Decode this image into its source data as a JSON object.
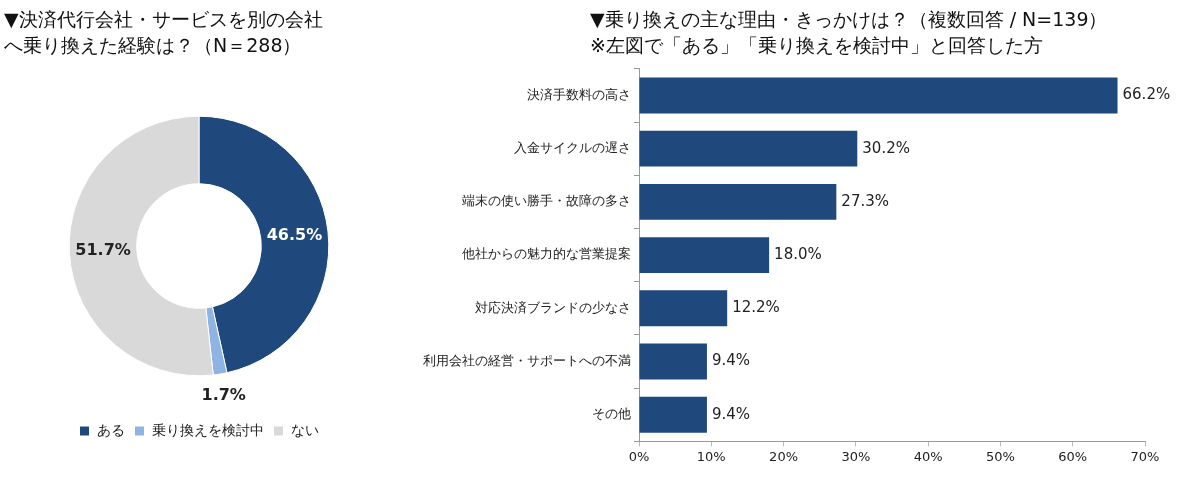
{
  "chart_data": [
    {
      "type": "donut",
      "title": "▼決済代行会社・サービスを別の会社へ乗り換えた経験は？（N＝288）",
      "categories": [
        "ある",
        "乗り換えを検討中",
        "ない"
      ],
      "values": [
        46.5,
        1.7,
        51.7
      ],
      "colors": [
        "#1f497d",
        "#8db4e2",
        "#d9d9d9"
      ],
      "value_labels": [
        "46.5%",
        "1.7%",
        "51.7%"
      ],
      "legend": "bottom"
    },
    {
      "type": "bar",
      "orientation": "horizontal",
      "title": "▼乗り換えの主な理由・きっかけは？（複数回答 / N=139）",
      "subtitle": "※左図で「ある」「乗り換えを検討中」と回答した方",
      "categories": [
        "決済手数料の高さ",
        "入金サイクルの遅さ",
        "端末の使い勝手・故障の多さ",
        "他社からの魅力的な営業提案",
        "対応決済ブランドの少なさ",
        "利用会社の経営・サポートへの不満",
        "その他"
      ],
      "values": [
        66.2,
        30.2,
        27.3,
        18.0,
        12.2,
        9.4,
        9.4
      ],
      "color": "#1f497d",
      "value_labels": [
        "66.2%",
        "30.2%",
        "27.3%",
        "18.0%",
        "12.2%",
        "9.4%",
        "9.4%"
      ],
      "xlim": [
        0,
        70
      ],
      "xticks": [
        {
          "value": 0,
          "label": "0%"
        },
        {
          "value": 10,
          "label": "10%"
        },
        {
          "value": 20,
          "label": "20%"
        },
        {
          "value": 30,
          "label": "30%"
        },
        {
          "value": 40,
          "label": "40%"
        },
        {
          "value": 50,
          "label": "50%"
        },
        {
          "value": 60,
          "label": "60%"
        },
        {
          "value": 70,
          "label": "70%"
        }
      ],
      "grid": false,
      "legend": false
    }
  ]
}
